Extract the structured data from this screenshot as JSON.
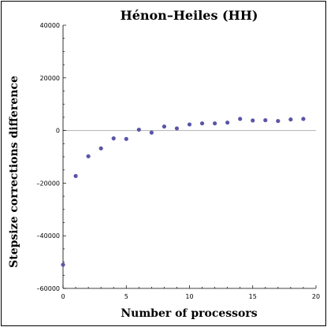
{
  "chart_data": {
    "type": "scatter",
    "title": "Hénon–Heiles (HH)",
    "xlabel": "Number of processors",
    "ylabel": "Stepsize corrections difference",
    "xlim": [
      0,
      20
    ],
    "ylim": [
      -60000,
      40000
    ],
    "xticks": [
      0,
      5,
      10,
      15,
      20
    ],
    "yticks": [
      -60000,
      -40000,
      -20000,
      0,
      20000,
      40000
    ],
    "ytick_labels": [
      "–60000",
      "–40000",
      "–20000",
      "0",
      "20000",
      "40000"
    ],
    "xtick_labels": [
      "0",
      "5",
      "10",
      "15",
      "20"
    ],
    "zero_reference_line": true,
    "grid": false,
    "marker_color": "#5a55a8",
    "series": [
      {
        "x": [
          0,
          1,
          2,
          3,
          4,
          5,
          6,
          7,
          8,
          9,
          10,
          11,
          12,
          13,
          14,
          15,
          16,
          17,
          18,
          19
        ],
        "y": [
          -51000,
          -17300,
          -9800,
          -6800,
          -3000,
          -3200,
          300,
          -800,
          1500,
          800,
          2300,
          2700,
          2700,
          3000,
          4400,
          3800,
          3900,
          3600,
          4200,
          4400
        ]
      }
    ]
  }
}
